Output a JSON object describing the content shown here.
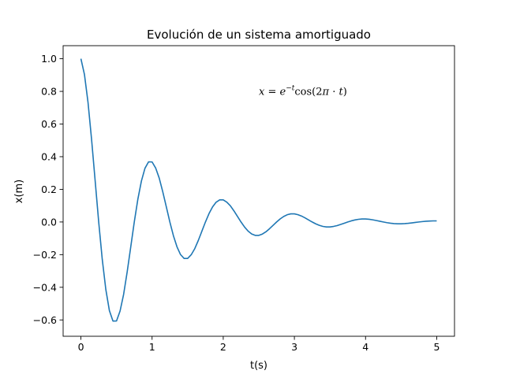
{
  "chart_data": {
    "type": "line",
    "title": "Evolución de un sistema amortiguado",
    "xlabel": "t(s)",
    "ylabel": "x(m)",
    "xlim": [
      -0.25,
      5.25
    ],
    "ylim": [
      -0.7,
      1.08
    ],
    "xticks": [
      0,
      1,
      2,
      3,
      4,
      5
    ],
    "xtick_labels": [
      "0",
      "1",
      "2",
      "3",
      "4",
      "5"
    ],
    "yticks": [
      -0.6,
      -0.4,
      -0.2,
      0.0,
      0.2,
      0.4,
      0.6,
      0.8,
      1.0
    ],
    "ytick_labels": [
      "−0.6",
      "−0.4",
      "−0.2",
      "0.0",
      "0.2",
      "0.4",
      "0.6",
      "0.8",
      "1.0"
    ],
    "grid": false,
    "annotation": {
      "text": "x = e^{−t} cos(2π · t)",
      "lhs": "x",
      "equals": " = ",
      "base": "e",
      "exponent": "−t",
      "func": "cos",
      "arg_open": "(2",
      "pi": "π",
      "dot": " · ",
      "var": "t",
      "arg_close": ")",
      "x": 2.5,
      "y": 0.8
    },
    "series": [
      {
        "color": "#1f77b4",
        "x": [
          0.0,
          0.05,
          0.1,
          0.15,
          0.2,
          0.25,
          0.3,
          0.35,
          0.4,
          0.45,
          0.5,
          0.55,
          0.6,
          0.65,
          0.7,
          0.75,
          0.8,
          0.85,
          0.9,
          0.95,
          1.0,
          1.05,
          1.1,
          1.15,
          1.2,
          1.25,
          1.3,
          1.35,
          1.4,
          1.45,
          1.5,
          1.55,
          1.6,
          1.65,
          1.7,
          1.75,
          1.8,
          1.85,
          1.9,
          1.95,
          2.0,
          2.05,
          2.1,
          2.15,
          2.2,
          2.25,
          2.3,
          2.35,
          2.4,
          2.45,
          2.5,
          2.55,
          2.6,
          2.65,
          2.7,
          2.75,
          2.8,
          2.85,
          2.9,
          2.95,
          3.0,
          3.05,
          3.1,
          3.15,
          3.2,
          3.25,
          3.3,
          3.35,
          3.4,
          3.45,
          3.5,
          3.55,
          3.6,
          3.65,
          3.7,
          3.75,
          3.8,
          3.85,
          3.9,
          3.95,
          4.0,
          4.05,
          4.1,
          4.15,
          4.2,
          4.25,
          4.3,
          4.35,
          4.4,
          4.45,
          4.5,
          4.55,
          4.6,
          4.65,
          4.7,
          4.75,
          4.8,
          4.85,
          4.9,
          4.95,
          5.0
        ],
        "y": [
          1.0,
          0.9028,
          0.732,
          0.5049,
          0.2531,
          0.0,
          -0.2292,
          -0.4133,
          -0.5426,
          -0.6067,
          -0.6065,
          -0.5456,
          -0.444,
          -0.3062,
          -0.1535,
          0.0,
          0.139,
          0.2507,
          0.329,
          0.368,
          0.3679,
          0.3309,
          0.2693,
          0.1857,
          0.0931,
          0.0,
          -0.0843,
          -0.152,
          -0.1996,
          -0.2232,
          -0.2231,
          -0.2007,
          -0.1633,
          -0.1127,
          -0.0565,
          0.0,
          0.0511,
          0.0922,
          0.1211,
          0.1354,
          0.1353,
          0.1217,
          0.0991,
          0.0683,
          0.0343,
          0.0,
          -0.031,
          -0.0559,
          -0.0734,
          -0.0821,
          -0.0821,
          -0.0738,
          -0.0601,
          -0.0414,
          -0.0208,
          0.0,
          0.0188,
          0.0339,
          0.0445,
          0.0498,
          0.0498,
          0.0448,
          0.0364,
          0.0251,
          0.0126,
          0.0,
          -0.0114,
          -0.0206,
          -0.027,
          -0.0302,
          -0.0302,
          -0.0272,
          -0.0221,
          -0.0152,
          -0.0076,
          0.0,
          0.0069,
          0.0125,
          0.0164,
          0.0183,
          0.0183,
          0.0165,
          0.0134,
          0.0092,
          0.0046,
          0.0,
          -0.0042,
          -0.0076,
          -0.0099,
          -0.0111,
          -0.0111,
          -0.01,
          -0.0081,
          -0.0056,
          -0.0028,
          0.0,
          0.0025,
          0.0046,
          0.006,
          0.0067,
          0.0067
        ]
      }
    ]
  }
}
